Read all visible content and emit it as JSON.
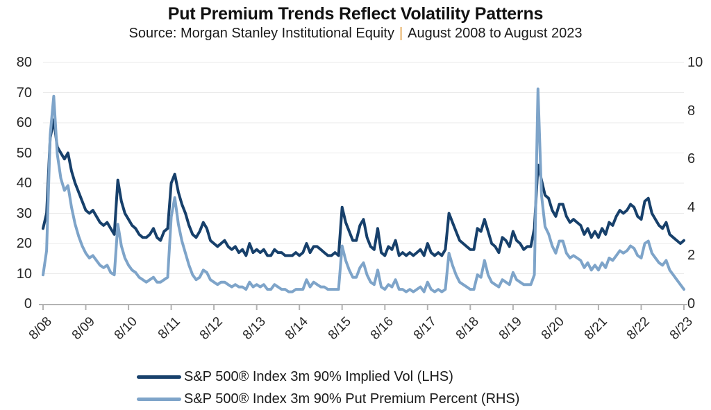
{
  "chart_data": {
    "type": "line",
    "title": "Put Premium Trends Reflect Volatility Patterns",
    "subtitle": {
      "source": "Source: Morgan Stanley Institutional Equity",
      "separator": "|",
      "range": "August 2008 to August 2023"
    },
    "x_frequency": "monthly",
    "x_start": "2008-08",
    "x_end": "2023-08",
    "x_tick_labels": [
      "8/08",
      "8/09",
      "8/10",
      "8/11",
      "8/12",
      "8/13",
      "8/14",
      "8/15",
      "8/16",
      "8/17",
      "8/18",
      "8/19",
      "8/20",
      "8/21",
      "8/22",
      "8/23"
    ],
    "left_axis": {
      "min": 0,
      "max": 80,
      "ticks": [
        0,
        10,
        20,
        30,
        40,
        50,
        60,
        70,
        80
      ]
    },
    "right_axis": {
      "min": 0,
      "max": 10,
      "ticks": [
        0,
        2,
        4,
        6,
        8,
        10
      ]
    },
    "grid": "horizontal",
    "legend_position": "bottom",
    "colors": {
      "separator_accent": "#E19B3C",
      "axis_line": "#B3B3B3",
      "gridline": "#EAEAEA",
      "text": "#1A1A1A"
    },
    "series": [
      {
        "key": "implied-vol",
        "name": "S&P 500® Index 3m 90% Implied Vol (LHS)",
        "axis": "left",
        "color": "#17406B",
        "values": [
          25,
          30,
          55,
          61,
          52,
          50,
          48,
          50,
          44,
          40,
          37,
          34,
          31,
          30,
          31,
          29,
          27,
          26,
          27,
          25,
          23,
          41,
          34,
          30,
          28,
          26,
          25,
          23,
          22,
          22,
          23,
          25,
          22,
          21,
          24,
          25,
          40,
          43,
          37,
          33,
          30,
          26,
          23,
          22,
          24,
          27,
          25,
          21,
          20,
          19,
          20,
          21,
          19,
          18,
          19,
          17,
          18,
          16,
          20,
          17,
          18,
          17,
          18,
          16,
          16,
          18,
          17,
          17,
          16,
          16,
          16,
          17,
          16,
          17,
          20,
          17,
          19,
          19,
          18,
          17,
          16,
          16,
          17,
          16,
          32,
          27,
          24,
          21,
          21,
          26,
          28,
          22,
          19,
          18,
          25,
          17,
          16,
          19,
          18,
          21,
          16,
          17,
          16,
          17,
          16,
          17,
          18,
          16,
          20,
          17,
          16,
          17,
          16,
          18,
          30,
          27,
          24,
          21,
          20,
          19,
          18,
          18,
          25,
          24,
          28,
          24,
          20,
          19,
          17,
          22,
          21,
          19,
          24,
          21,
          20,
          18,
          19,
          19,
          25,
          46,
          41,
          36,
          35,
          31,
          29,
          33,
          33,
          29,
          27,
          28,
          27,
          26,
          23,
          25,
          22,
          24,
          22,
          25,
          23,
          27,
          26,
          29,
          31,
          30,
          31,
          33,
          32,
          29,
          28,
          34,
          35,
          30,
          28,
          26,
          25,
          27,
          23,
          22,
          21,
          20,
          21
        ]
      },
      {
        "key": "put-premium",
        "name": "S&P 500® Index 3m 90% Put Premium Percent (RHS)",
        "axis": "right",
        "color": "#7EA4C9",
        "values": [
          1.2,
          2.2,
          7.0,
          8.6,
          6.2,
          5.2,
          4.7,
          4.9,
          4.0,
          3.3,
          2.8,
          2.4,
          2.1,
          1.9,
          2.0,
          1.8,
          1.6,
          1.5,
          1.6,
          1.3,
          1.2,
          3.3,
          2.4,
          1.9,
          1.6,
          1.4,
          1.3,
          1.1,
          1.0,
          0.9,
          1.0,
          1.1,
          0.9,
          0.9,
          1.0,
          1.1,
          3.6,
          4.4,
          3.3,
          2.6,
          2.1,
          1.6,
          1.2,
          1.0,
          1.1,
          1.4,
          1.3,
          1.0,
          0.9,
          0.8,
          0.9,
          0.9,
          0.8,
          0.7,
          0.8,
          0.7,
          0.7,
          0.6,
          0.9,
          0.7,
          0.8,
          0.7,
          0.8,
          0.6,
          0.6,
          0.8,
          0.7,
          0.6,
          0.6,
          0.5,
          0.5,
          0.6,
          0.6,
          0.6,
          1.0,
          0.7,
          0.9,
          0.8,
          0.7,
          0.7,
          0.6,
          0.6,
          0.6,
          0.6,
          2.4,
          1.8,
          1.4,
          1.1,
          1.1,
          1.5,
          1.7,
          1.2,
          0.9,
          0.8,
          1.4,
          0.7,
          0.6,
          0.8,
          0.7,
          1.0,
          0.6,
          0.6,
          0.5,
          0.6,
          0.5,
          0.6,
          0.7,
          0.5,
          0.9,
          0.6,
          0.5,
          0.6,
          0.5,
          0.6,
          2.1,
          1.6,
          1.2,
          0.9,
          0.8,
          0.7,
          0.6,
          0.6,
          1.2,
          1.1,
          1.8,
          1.2,
          0.9,
          0.8,
          0.7,
          1.0,
          0.9,
          0.8,
          1.3,
          1.0,
          0.9,
          0.8,
          0.8,
          0.8,
          1.2,
          8.9,
          4.5,
          3.2,
          2.9,
          2.4,
          2.1,
          2.6,
          2.6,
          2.1,
          1.9,
          2.0,
          1.9,
          1.8,
          1.5,
          1.7,
          1.4,
          1.6,
          1.4,
          1.7,
          1.5,
          1.9,
          1.8,
          2.0,
          2.2,
          2.1,
          2.2,
          2.4,
          2.3,
          2.0,
          1.9,
          2.5,
          2.6,
          2.1,
          1.9,
          1.7,
          1.6,
          1.8,
          1.4,
          1.2,
          1.0,
          0.8,
          0.6
        ]
      }
    ]
  }
}
